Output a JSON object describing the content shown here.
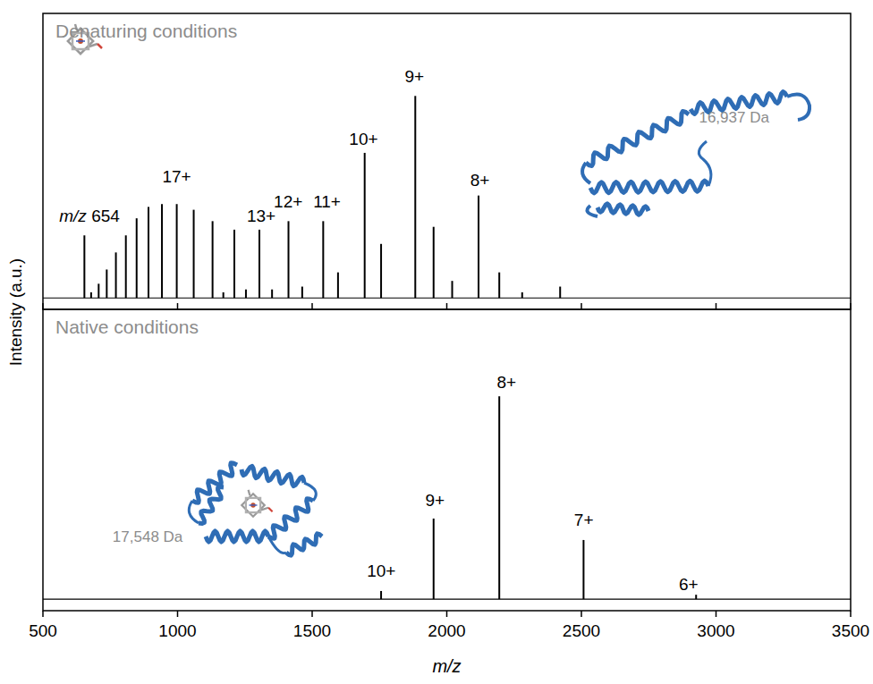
{
  "chart_data": [
    {
      "type": "spectrum",
      "title": "Denaturing conditions",
      "ylabel": "Intensity (a.u.)",
      "x": [
        654,
        679,
        707,
        737,
        771,
        808,
        848,
        892,
        942,
        997,
        1060,
        1130,
        1170,
        1211,
        1254,
        1304,
        1351,
        1412,
        1463,
        1541,
        1596,
        1695,
        1756,
        1883,
        1951,
        2020,
        2118,
        2195,
        2280,
        2421
      ],
      "values": [
        22,
        2,
        5,
        10,
        16,
        22,
        28,
        32,
        33,
        33,
        31,
        27,
        2,
        24,
        3,
        24,
        3,
        27,
        4,
        27,
        9,
        51,
        19,
        71,
        25,
        6,
        36,
        9,
        2,
        4
      ],
      "color": "#000000",
      "xlim": [
        500,
        3500
      ],
      "xticks": [
        500,
        1000,
        1500,
        2000,
        2500,
        3000,
        3500
      ],
      "ylim": [
        -4,
        100
      ],
      "tick_labels": false,
      "annotations": [
        {
          "text": "m/z 654",
          "x": 673,
          "y": 26.7
        },
        {
          "text": "17+",
          "x": 997,
          "y": 40.5
        },
        {
          "text": "13+",
          "x": 1311,
          "y": 26.7
        },
        {
          "text": "12+",
          "x": 1411,
          "y": 31.7
        },
        {
          "text": "11+",
          "x": 1555,
          "y": 31.7
        },
        {
          "text": "10+",
          "x": 1691,
          "y": 53.7
        },
        {
          "text": "9+",
          "x": 1880,
          "y": 75.7
        },
        {
          "text": "8+",
          "x": 2123,
          "y": 39.3
        },
        {
          "text": "16,937 Da",
          "x": 3067,
          "y": 61.6,
          "color": "#8c8c8c"
        }
      ]
    },
    {
      "type": "spectrum",
      "title": "Native conditions",
      "xlabel": "m/z",
      "x": [
        1756,
        1951,
        2195,
        2508,
        2926
      ],
      "values": [
        2.8,
        27.8,
        70,
        20.4,
        1.5
      ],
      "color": "#000000",
      "xlim": [
        500,
        3500
      ],
      "xticks": [
        500,
        1000,
        1500,
        2000,
        2500,
        3000,
        3500
      ],
      "ylim": [
        -4,
        100
      ],
      "tick_labels": "x",
      "annotations": [
        {
          "text": "10+",
          "x": 1757,
          "y": 7.7
        },
        {
          "text": "9+",
          "x": 1956,
          "y": 32.1
        },
        {
          "text": "8+",
          "x": 2222,
          "y": 72.8
        },
        {
          "text": "7+",
          "x": 2509,
          "y": 25.3
        },
        {
          "text": "6+",
          "x": 2898,
          "y": 3.1
        },
        {
          "text": "17,548 Da",
          "x": 889,
          "y": 19.7,
          "color": "#8c8c8c"
        }
      ]
    }
  ]
}
